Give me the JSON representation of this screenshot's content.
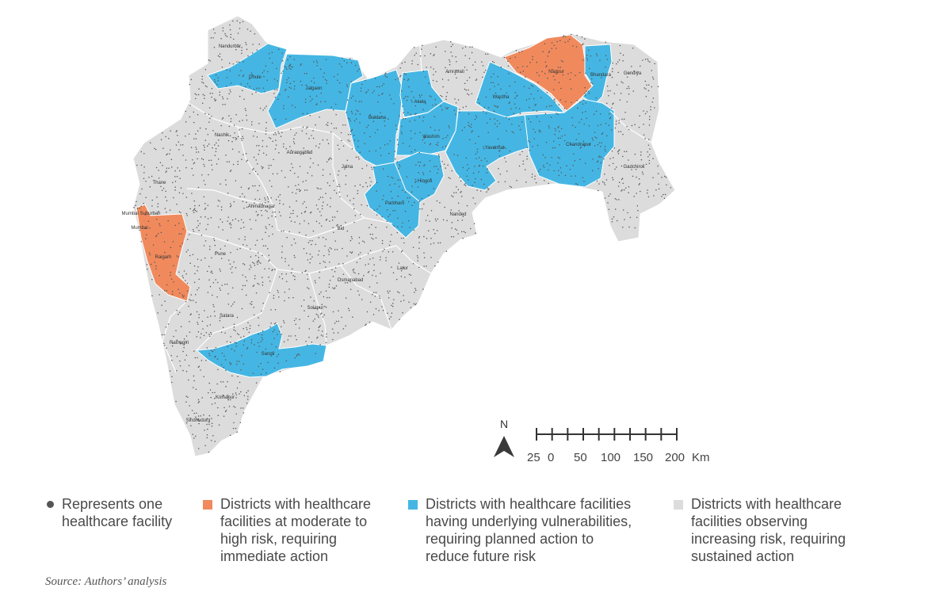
{
  "colors": {
    "high_risk": "#f08a5d",
    "vulnerable": "#45b6e3",
    "increasing": "#dcdcdc",
    "facility_dot": "#555555",
    "boundary": "#ffffff"
  },
  "districts": {
    "nandurbar": "Nandurbar",
    "dhule": "Dhule",
    "jalgaon": "Jalgaon",
    "buldana": "Buldana",
    "akola": "Akola",
    "amravati": "Amravati",
    "nagpur": "Nagpur",
    "bhandara": "Bhandara",
    "gondiya": "Gondiya",
    "wardha": "Wardha",
    "washim": "Washim",
    "yavatmal": "Yavatmal",
    "chandrapur": "Chandrapur",
    "gadchiroli": "Gadchiroli",
    "nashik": "Nashik",
    "aurangabad": "Aurangabad",
    "jalna": "Jalna",
    "hingoli": "Hingoli",
    "parbhani": "Parbhani",
    "nanded": "Nanded",
    "thane": "Thane",
    "mumbai_suburban": "Mumbai Suburban",
    "mumbai": "Mumbai",
    "ahmadnagar": "Ahmadnagar",
    "bid": "Bid",
    "raigarh": "Raigarh",
    "pune": "Pune",
    "latur": "Latur",
    "osmanabad": "Osmanabad",
    "solapur": "Solapur",
    "satara": "Satara",
    "ratnagiri": "Ratnagiri",
    "sangli": "Sangli",
    "kolhapur": "Kolhapur",
    "sindhudurg": "Sindhudurg"
  },
  "north_arrow": {
    "label": "N"
  },
  "scale_bar": {
    "labels": [
      "25",
      "0",
      "50",
      "100",
      "150",
      "200"
    ],
    "unit": "Km"
  },
  "legend": {
    "facility": "Represents one\nhealthcare facility",
    "high_risk": "Districts with healthcare\nfacilities at moderate to\nhigh risk, requiring\nimmediate action",
    "vulnerable": "Districts with healthcare facilities\nhaving underlying vulnerabilities,\nrequiring planned action to\nreduce future risk",
    "increasing": "Districts with healthcare\nfacilities observing\nincreasing risk, requiring\nsustained action"
  },
  "source": "Source: Authors’ analysis"
}
